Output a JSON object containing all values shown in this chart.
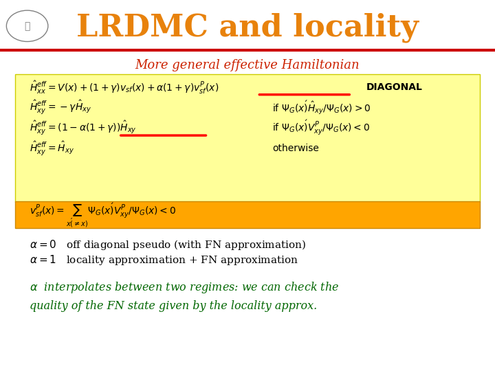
{
  "title": "LRDMC and locality",
  "title_color": "#E8820C",
  "subtitle": "More general effective Hamiltonian",
  "subtitle_color": "#CC2200",
  "bg_color": "#FFFFFF",
  "yellow_box_color": "#FFFF99",
  "orange_box_color": "#FFA500",
  "red_line_color": "#CC0000",
  "green_text_color": "#006600",
  "black_text_color": "#000000",
  "separator_color": "#CC0000",
  "eq1": "$\\hat{H}^{eff}_{xx} = V(x) + (1+\\gamma)v_{sf}(x) + \\alpha(1+\\gamma)v^P_{sf}(x)$   DIAGONAL",
  "eq2": "$\\hat{H}^{eff}_{xy} = -\\gamma \\hat{H}_{xy}$",
  "eq2_cond": "if $\\Psi_G(x')\\hat{H}_{xy}/\\Psi_G(x) > 0$",
  "eq3": "$\\hat{H}^{eff}_{xy} = (1-\\alpha(1+\\gamma))\\hat{H}_{xy}$",
  "eq3_cond": "if $\\Psi_G(x')V^P_{xy}/\\Psi_G(x) < 0$",
  "eq4": "$\\hat{H}^{eff}_{xy} = \\hat{H}_{xy}$",
  "eq4_cond": "otherwise",
  "eq5": "$v^P_{sf}(x) = \\sum_{x'(\\neq x)} \\Psi_G(x')V^P_{xy}/\\Psi_G(x) < 0$",
  "alpha0_text": "$\\alpha = 0$   off diagonal pseudo (with FN approximation)",
  "alpha1_text": "$\\alpha = 1$   locality approximation + FN approximation",
  "interp_text": "$\\alpha$  interpolates between two regimes: we can check the\nquality of the FN state given by the locality approx."
}
